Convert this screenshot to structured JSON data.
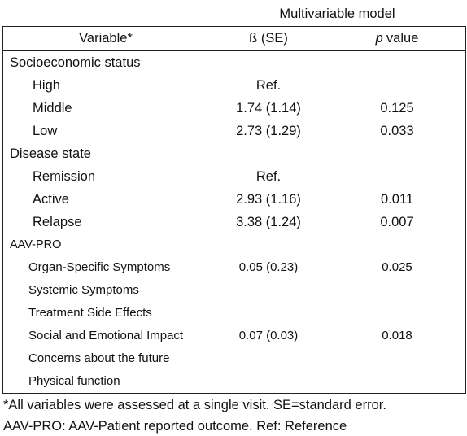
{
  "table": {
    "group_header": "Multivariable model",
    "header": {
      "variable": "Variable*",
      "beta_se": "ß (SE)",
      "p_italic": "p",
      "p_rest": "value"
    },
    "sections": [
      {
        "title": "Socioeconomic status",
        "items": [
          {
            "label": "High",
            "beta_se": "Ref."
          },
          {
            "label": "Middle",
            "beta_se": "1.74 (1.14)",
            "p_value": "0.125"
          },
          {
            "label": "Low",
            "beta_se": "2.73 (1.29)",
            "p_value": "0.033"
          }
        ]
      },
      {
        "title": "Disease state",
        "items": [
          {
            "label": "Remission",
            "beta_se": "Ref."
          },
          {
            "label": "Active",
            "beta_se": "2.93 (1.16)",
            "p_value": "0.011"
          },
          {
            "label": "Relapse",
            "beta_se": "3.38 (1.24)",
            "p_value": "0.007"
          }
        ]
      },
      {
        "title": "AAV-PRO",
        "items": [
          {
            "label": "Organ-Specific Symptoms",
            "beta_se": "0.05 (0.23)",
            "p_value": "0.025"
          },
          {
            "label": "Systemic Symptoms"
          },
          {
            "label": "Treatment Side Effects"
          },
          {
            "label": "Social and Emotional Impact",
            "beta_se": "0.07 (0.03)",
            "p_value": "0.018"
          },
          {
            "label": "Concerns about the future"
          },
          {
            "label": "Physical function"
          }
        ]
      }
    ]
  },
  "footnotes": [
    "*All variables were assessed at a single visit. SE=standard error.",
    "AAV-PRO: AAV-Patient reported outcome. Ref: Reference"
  ]
}
